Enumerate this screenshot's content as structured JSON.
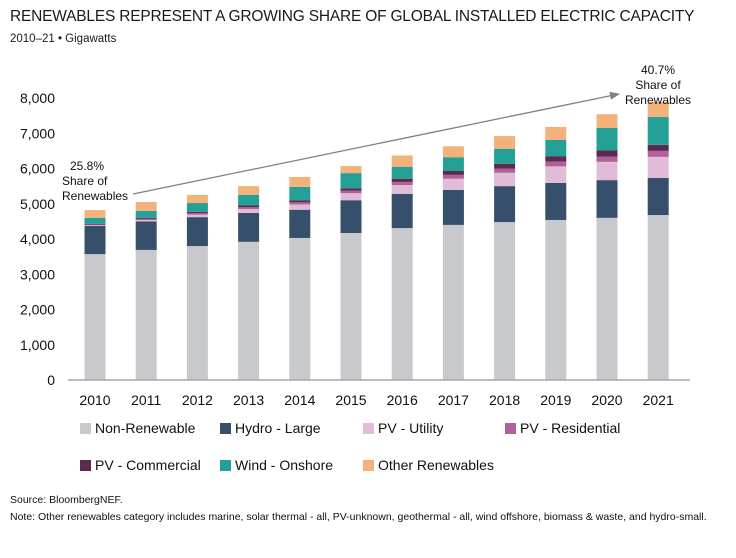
{
  "header": {
    "title": "RENEWABLES REPRESENT A GROWING SHARE OF GLOBAL INSTALLED ELECTRIC CAPACITY",
    "subtitle": "2010–21 • Gigawatts"
  },
  "chart_data": {
    "type": "bar",
    "stacked": true,
    "title": "RENEWABLES REPRESENT A GROWING SHARE OF GLOBAL INSTALLED ELECTRIC CAPACITY",
    "subtitle": "2010–21 • Gigawatts",
    "xlabel": "",
    "ylabel": "",
    "ylim": [
      0,
      8000
    ],
    "yticks": [
      0,
      1000,
      2000,
      3000,
      4000,
      5000,
      6000,
      7000,
      8000
    ],
    "ytick_labels": [
      "0",
      "1,000",
      "2,000",
      "3,000",
      "4,000",
      "5,000",
      "6,000",
      "7,000",
      "8,000"
    ],
    "grid": false,
    "legend_position": "bottom",
    "categories": [
      "2010",
      "2011",
      "2012",
      "2013",
      "2014",
      "2015",
      "2016",
      "2017",
      "2018",
      "2019",
      "2020",
      "2021"
    ],
    "series": [
      {
        "name": "Non-Renewable",
        "color": "#c8c9cc",
        "values": [
          3570,
          3690,
          3800,
          3920,
          4030,
          4170,
          4310,
          4400,
          4480,
          4540,
          4600,
          4680
        ]
      },
      {
        "name": "Hydro - Large",
        "color": "#364f6b",
        "values": [
          800,
          810,
          820,
          820,
          800,
          930,
          970,
          990,
          1020,
          1050,
          1070,
          1050
        ]
      },
      {
        "name": "PV - Utility",
        "color": "#e0bcd6",
        "values": [
          20,
          40,
          70,
          110,
          150,
          200,
          250,
          320,
          380,
          470,
          520,
          600
        ]
      },
      {
        "name": "PV - Residential",
        "color": "#b0609a",
        "values": [
          20,
          30,
          40,
          50,
          60,
          70,
          90,
          110,
          120,
          140,
          150,
          170
        ]
      },
      {
        "name": "PV - Commercial",
        "color": "#5c2a4c",
        "values": [
          20,
          30,
          40,
          50,
          60,
          70,
          90,
          110,
          130,
          150,
          170,
          170
        ]
      },
      {
        "name": "Wind - Onshore",
        "color": "#25a096",
        "values": [
          170,
          200,
          250,
          300,
          380,
          430,
          340,
          390,
          430,
          460,
          640,
          790
        ]
      },
      {
        "name": "Other Renewables",
        "color": "#f2b27a",
        "values": [
          220,
          250,
          230,
          250,
          280,
          200,
          320,
          310,
          360,
          370,
          390,
          430
        ]
      }
    ],
    "annotations": [
      {
        "category": "2010",
        "lines": [
          "25.8%",
          "Share of",
          "Renewables"
        ]
      },
      {
        "category": "2021",
        "lines": [
          "40.7%",
          "Share of",
          "Renewables"
        ]
      }
    ],
    "arrow": {
      "from_category": "2010",
      "to_category": "2021",
      "color": "#7f7f7f"
    }
  },
  "footer": {
    "source": "Source: BloombergNEF.",
    "note": "Note: Other renewables category includes marine, solar thermal - all, PV-unknown, geothermal - all, wind offshore, biomass & waste, and hydro-small."
  }
}
